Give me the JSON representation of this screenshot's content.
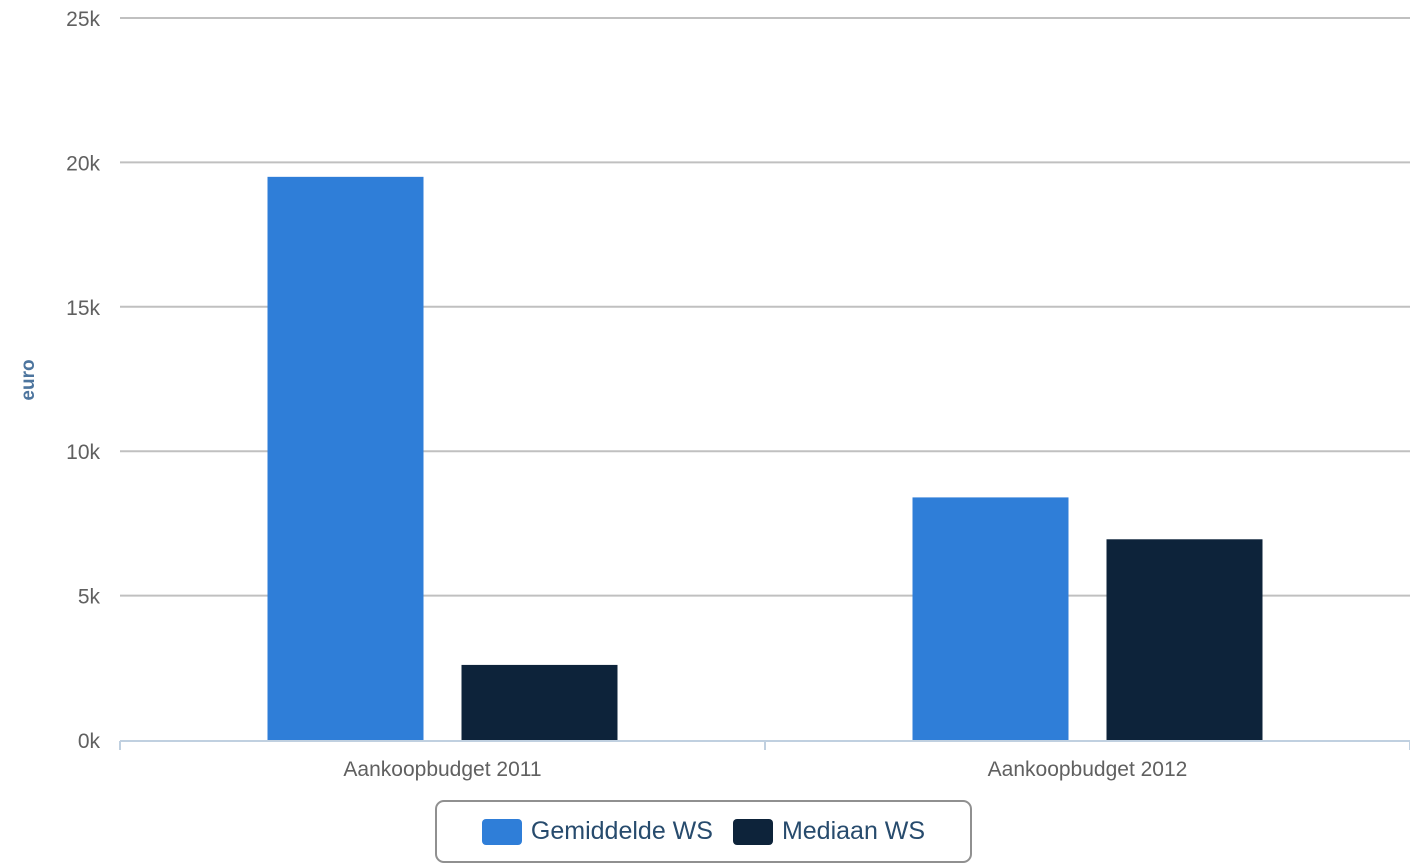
{
  "chart_data": {
    "type": "bar",
    "categories": [
      "Aankoopbudget 2011",
      "Aankoopbudget 2012"
    ],
    "series": [
      {
        "name": "Gemiddelde WS",
        "color": "#2f7ed8",
        "values": [
          19500,
          8400
        ]
      },
      {
        "name": "Mediaan WS",
        "color": "#0d233a",
        "values": [
          2600,
          6950
        ]
      }
    ],
    "ylabel": "euro",
    "ylim": [
      0,
      25000
    ],
    "yticks": [
      0,
      5000,
      10000,
      15000,
      20000,
      25000
    ],
    "ytick_labels": [
      "0k",
      "5k",
      "10k",
      "15k",
      "20k",
      "25k"
    ],
    "grid": true,
    "legend_position": "bottom-center"
  }
}
